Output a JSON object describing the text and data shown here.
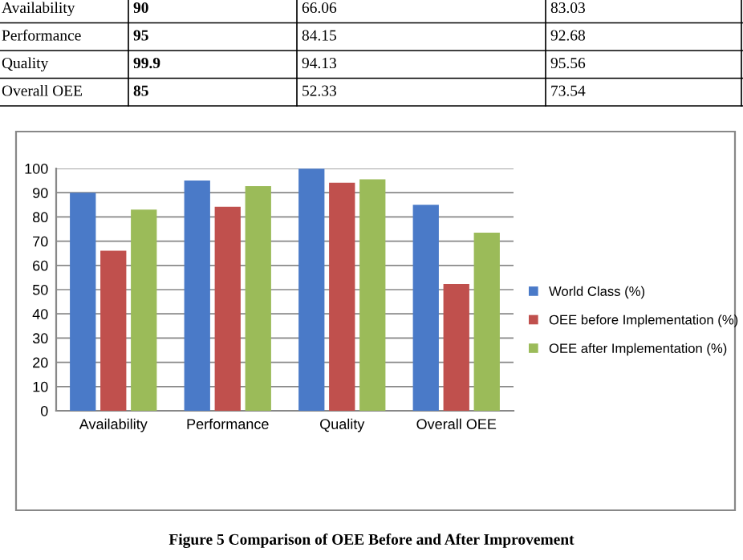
{
  "chart_data": {
    "type": "bar",
    "categories": [
      "Availability",
      "Performance",
      "Quality",
      "Overall OEE"
    ],
    "series": [
      {
        "name": "World Class (%)",
        "color": "#4a7ac8",
        "values": [
          90,
          95,
          99.9,
          85
        ]
      },
      {
        "name": "OEE before Implementation (%)",
        "color": "#c0504d",
        "values": [
          66.06,
          84.15,
          94.13,
          52.33
        ]
      },
      {
        "name": "OEE after Implementation (%)",
        "color": "#9bbb59",
        "values": [
          83.03,
          92.68,
          95.56,
          73.54
        ]
      }
    ],
    "ylim": [
      0,
      100
    ],
    "yticks": [
      0,
      10,
      20,
      30,
      40,
      50,
      60,
      70,
      80,
      90,
      100
    ],
    "grid": "y",
    "legend": "right",
    "annotations": [
      "Availability",
      "90",
      "66.06",
      "83.03",
      "Performance",
      "95",
      "84.15",
      "92.68",
      "Quality",
      "99.9",
      "94.13",
      "95.56",
      "Overall OEE",
      "85",
      "52.33",
      "73.54",
      "Figure 5 Comparison of OEE Before and After Improvement"
    ]
  }
}
